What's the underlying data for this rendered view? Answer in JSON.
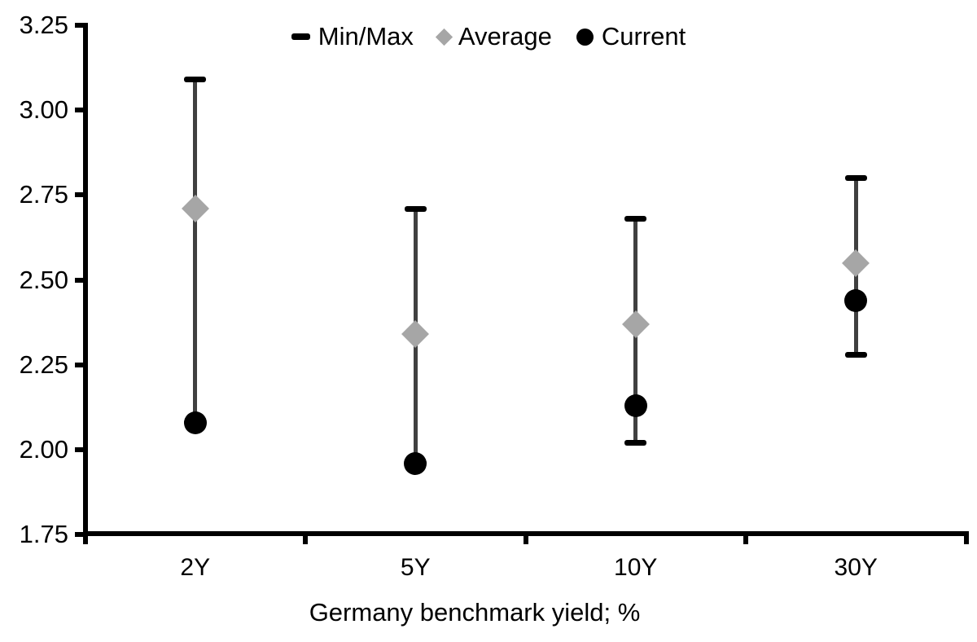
{
  "chart_data": {
    "type": "scatter",
    "subtype": "min-max-range-dot-plot",
    "title": "",
    "xlabel": "Germany benchmark yield; %",
    "ylabel": "",
    "categories": [
      "2Y",
      "5Y",
      "10Y",
      "30Y"
    ],
    "series": [
      {
        "name": "Min/Max",
        "marker": "dash",
        "min": [
          2.08,
          1.96,
          2.02,
          2.28
        ],
        "max": [
          3.09,
          2.71,
          2.68,
          2.8
        ]
      },
      {
        "name": "Average",
        "marker": "diamond",
        "values": [
          2.71,
          2.34,
          2.37,
          2.55
        ]
      },
      {
        "name": "Current",
        "marker": "circle",
        "values": [
          2.08,
          1.96,
          2.13,
          2.44
        ]
      }
    ],
    "ylim": [
      1.75,
      3.25
    ],
    "y_ticks": [
      "3.25",
      "3.00",
      "2.75",
      "2.50",
      "2.25",
      "2.00",
      "1.75"
    ],
    "grid": false,
    "legend_position": "top-center",
    "colors": {
      "axis": "#000000",
      "text": "#000000",
      "range_line": "#404040",
      "minmax_cap": "#000000",
      "average": "#a6a6a6",
      "current": "#000000",
      "background": "#ffffff"
    }
  }
}
